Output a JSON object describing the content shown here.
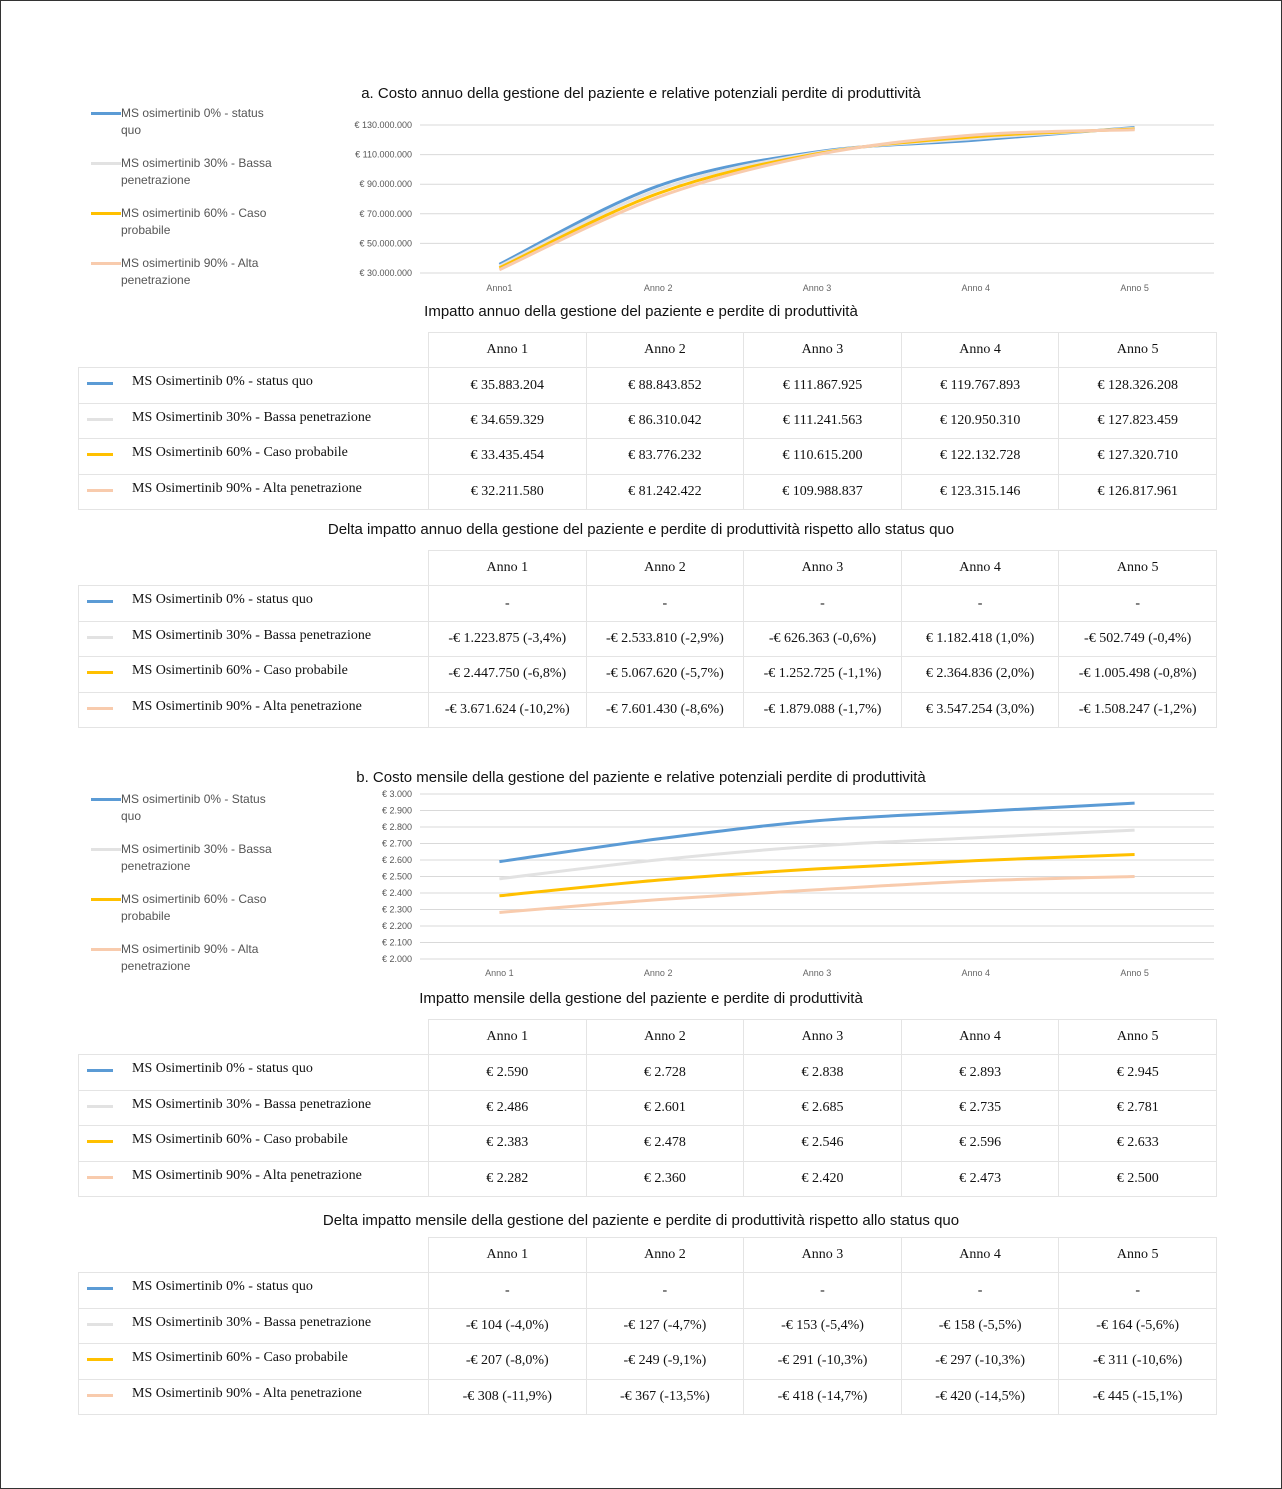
{
  "chart_data": [
    {
      "type": "line",
      "title": "a. Costo annuo della gestione del paziente e relative potenziali perdite di produttività",
      "categories": [
        "Anno1",
        "Anno 2",
        "Anno 3",
        "Anno 4",
        "Anno 5"
      ],
      "series": [
        {
          "name": "MS osimertinib 0% - status quo",
          "color": "#5b9bd5",
          "values": [
            35883204,
            88843852,
            111867925,
            119767893,
            128326208
          ]
        },
        {
          "name": "MS osimertinib 30% - Bassa penetrazione",
          "color": "#e2e2e2",
          "values": [
            34659329,
            86310042,
            111241563,
            120950310,
            127823459
          ]
        },
        {
          "name": "MS osimertinib 60% - Caso probabile",
          "color": "#ffc000",
          "values": [
            33435454,
            83776232,
            110615200,
            122132728,
            127320710
          ]
        },
        {
          "name": "MS osimertinib 90% - Alta penetrazione",
          "color": "#f8cbad",
          "values": [
            32211580,
            81242422,
            109988837,
            123315146,
            126817961
          ]
        }
      ],
      "ylim": [
        30000000,
        130000000
      ],
      "yticks": [
        {
          "value": 30000000,
          "label": "€ 30.000.000"
        },
        {
          "value": 50000000,
          "label": "€ 50.000.000"
        },
        {
          "value": 70000000,
          "label": "€ 70.000.000"
        },
        {
          "value": 90000000,
          "label": "€ 90.000.000"
        },
        {
          "value": 110000000,
          "label": "€ 110.000.000"
        },
        {
          "value": 130000000,
          "label": "€ 130.000.000"
        }
      ],
      "grid": true,
      "legend": "left"
    },
    {
      "type": "line",
      "title": "b. Costo mensile della gestione del paziente e relative potenziali perdite di produttività",
      "categories": [
        "Anno 1",
        "Anno 2",
        "Anno 3",
        "Anno 4",
        "Anno 5"
      ],
      "series": [
        {
          "name": "MS osimertinib 0% - Status quo",
          "color": "#5b9bd5",
          "values": [
            2590,
            2728,
            2838,
            2893,
            2945
          ]
        },
        {
          "name": "MS osimertinib 30% - Bassa penetrazione",
          "color": "#e2e2e2",
          "values": [
            2486,
            2601,
            2685,
            2735,
            2781
          ]
        },
        {
          "name": "MS osimertinib 60% - Caso probabile",
          "color": "#ffc000",
          "values": [
            2383,
            2478,
            2546,
            2596,
            2633
          ]
        },
        {
          "name": "MS osimertinib 90% - Alta penetrazione",
          "color": "#f8cbad",
          "values": [
            2282,
            2360,
            2420,
            2473,
            2500
          ]
        }
      ],
      "ylim": [
        2000,
        3000
      ],
      "yticks": [
        {
          "value": 2000,
          "label": "€ 2.000"
        },
        {
          "value": 2100,
          "label": "€ 2.100"
        },
        {
          "value": 2200,
          "label": "€ 2.200"
        },
        {
          "value": 2300,
          "label": "€ 2.300"
        },
        {
          "value": 2400,
          "label": "€ 2.400"
        },
        {
          "value": 2500,
          "label": "€ 2.500"
        },
        {
          "value": 2600,
          "label": "€ 2.600"
        },
        {
          "value": 2700,
          "label": "€ 2.700"
        },
        {
          "value": 2800,
          "label": "€ 2.800"
        },
        {
          "value": 2900,
          "label": "€ 2.900"
        },
        {
          "value": 3000,
          "label": "€ 3.000"
        }
      ],
      "grid": true,
      "legend": "left"
    }
  ],
  "tables": [
    {
      "title": "Impatto annuo della gestione del paziente e perdite di produttività",
      "columns": [
        "Anno 1",
        "Anno 2",
        "Anno 3",
        "Anno 4",
        "Anno 5"
      ],
      "rows": [
        {
          "label": "MS Osimertinib 0% - status quo",
          "color": "#5b9bd5",
          "cells": [
            "€ 35.883.204",
            "€ 88.843.852",
            "€ 111.867.925",
            "€ 119.767.893",
            "€ 128.326.208"
          ]
        },
        {
          "label": "MS Osimertinib 30% - Bassa penetrazione",
          "color": "#e2e2e2",
          "cells": [
            "€ 34.659.329",
            "€ 86.310.042",
            "€ 111.241.563",
            "€ 120.950.310",
            "€ 127.823.459"
          ]
        },
        {
          "label": "MS Osimertinib 60% - Caso probabile",
          "color": "#ffc000",
          "cells": [
            "€ 33.435.454",
            "€ 83.776.232",
            "€ 110.615.200",
            "€ 122.132.728",
            "€ 127.320.710"
          ]
        },
        {
          "label": "MS Osimertinib 90% - Alta penetrazione",
          "color": "#f8cbad",
          "cells": [
            "€ 32.211.580",
            "€ 81.242.422",
            "€ 109.988.837",
            "€ 123.315.146",
            "€ 126.817.961"
          ]
        }
      ]
    },
    {
      "title": "Delta impatto annuo della gestione del paziente e perdite di produttività rispetto allo status quo",
      "columns": [
        "Anno 1",
        "Anno 2",
        "Anno 3",
        "Anno 4",
        "Anno 5"
      ],
      "rows": [
        {
          "label": "MS Osimertinib 0% - status quo",
          "color": "#5b9bd5",
          "cells": [
            "-",
            "-",
            "-",
            "-",
            "-"
          ]
        },
        {
          "label": "MS Osimertinib 30% - Bassa penetrazione",
          "color": "#e2e2e2",
          "cells": [
            "-€ 1.223.875 (-3,4%)",
            "-€ 2.533.810 (-2,9%)",
            "-€ 626.363 (-0,6%)",
            "€ 1.182.418 (1,0%)",
            "-€ 502.749 (-0,4%)"
          ]
        },
        {
          "label": "MS Osimertinib 60% - Caso probabile",
          "color": "#ffc000",
          "cells": [
            "-€ 2.447.750 (-6,8%)",
            "-€ 5.067.620 (-5,7%)",
            "-€ 1.252.725 (-1,1%)",
            "€ 2.364.836 (2,0%)",
            "-€ 1.005.498 (-0,8%)"
          ]
        },
        {
          "label": "MS Osimertinib 90% - Alta penetrazione",
          "color": "#f8cbad",
          "cells": [
            "-€ 3.671.624 (-10,2%)",
            "-€ 7.601.430 (-8,6%)",
            "-€ 1.879.088 (-1,7%)",
            "€ 3.547.254 (3,0%)",
            "-€ 1.508.247 (-1,2%)"
          ]
        }
      ]
    },
    {
      "title": "Impatto mensile della gestione del paziente e perdite di produttività",
      "columns": [
        "Anno 1",
        "Anno 2",
        "Anno 3",
        "Anno 4",
        "Anno 5"
      ],
      "rows": [
        {
          "label": "MS Osimertinib 0% - status quo",
          "color": "#5b9bd5",
          "cells": [
            "€ 2.590",
            "€ 2.728",
            "€ 2.838",
            "€ 2.893",
            "€ 2.945"
          ]
        },
        {
          "label": "MS Osimertinib 30% - Bassa penetrazione",
          "color": "#e2e2e2",
          "cells": [
            "€ 2.486",
            "€ 2.601",
            "€ 2.685",
            "€ 2.735",
            "€ 2.781"
          ]
        },
        {
          "label": "MS Osimertinib 60% - Caso probabile",
          "color": "#ffc000",
          "cells": [
            "€ 2.383",
            "€ 2.478",
            "€ 2.546",
            "€ 2.596",
            "€ 2.633"
          ]
        },
        {
          "label": "MS Osimertinib 90% - Alta penetrazione",
          "color": "#f8cbad",
          "cells": [
            "€ 2.282",
            "€ 2.360",
            "€ 2.420",
            "€ 2.473",
            "€ 2.500"
          ]
        }
      ]
    },
    {
      "title": "Delta impatto mensile della gestione del paziente e perdite di produttività rispetto allo status quo",
      "columns": [
        "Anno 1",
        "Anno 2",
        "Anno 3",
        "Anno 4",
        "Anno 5"
      ],
      "rows": [
        {
          "label": "MS Osimertinib 0% - status quo",
          "color": "#5b9bd5",
          "cells": [
            "-",
            "-",
            "-",
            "-",
            "-"
          ]
        },
        {
          "label": "MS Osimertinib 30% - Bassa penetrazione",
          "color": "#e2e2e2",
          "cells": [
            "-€ 104 (-4,0%)",
            "-€ 127 (-4,7%)",
            "-€ 153 (-5,4%)",
            "-€ 158 (-5,5%)",
            "-€ 164 (-5,6%)"
          ]
        },
        {
          "label": "MS Osimertinib 60% - Caso probabile",
          "color": "#ffc000",
          "cells": [
            "-€ 207 (-8,0%)",
            "-€ 249 (-9,1%)",
            "-€ 291 (-10,3%)",
            "-€ 297 (-10,3%)",
            "-€ 311 (-10,6%)"
          ]
        },
        {
          "label": "MS Osimertinib 90% - Alta penetrazione",
          "color": "#f8cbad",
          "cells": [
            "-€ 308 (-11,9%)",
            "-€ 367 (-13,5%)",
            "-€ 418 (-14,7%)",
            "-€ 420 (-14,5%)",
            "-€ 445 (-15,1%)"
          ]
        }
      ]
    }
  ]
}
